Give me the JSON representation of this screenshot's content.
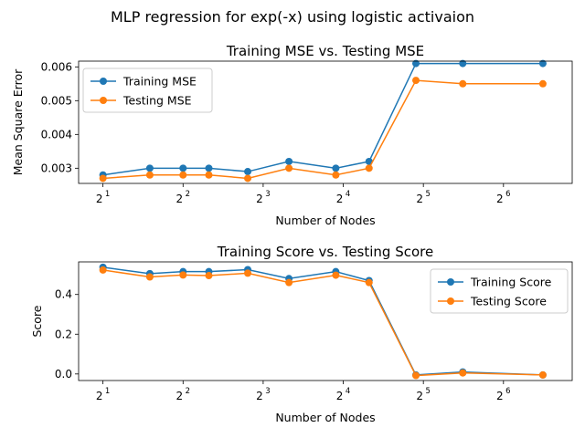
{
  "suptitle": "MLP regression for exp(-x) using logistic activaion",
  "chart_data": [
    {
      "type": "line",
      "title": "Training MSE vs. Testing MSE",
      "xlabel": "Number of Nodes",
      "ylabel": "Mean Square Error",
      "x_scale": "log2",
      "x": [
        2,
        3,
        4,
        5,
        7,
        10,
        15,
        20,
        30,
        45,
        90
      ],
      "xlim": [
        1.62,
        116
      ],
      "ylim": [
        0.00255,
        0.00617
      ],
      "yticks": [
        "0.003",
        "0.004",
        "0.005",
        "0.006"
      ],
      "xticks": [
        "2",
        "2",
        "2",
        "2",
        "2",
        "2"
      ],
      "xtick_exponents": [
        "1",
        "2",
        "3",
        "4",
        "5",
        "6"
      ],
      "legend_position": "upper left",
      "series": [
        {
          "name": "Training MSE",
          "color": "#1f77b4",
          "values": [
            0.0028,
            0.003,
            0.003,
            0.003,
            0.0029,
            0.0032,
            0.003,
            0.0032,
            0.0061,
            0.0061,
            0.0061
          ]
        },
        {
          "name": "Testing MSE",
          "color": "#ff7f0e",
          "values": [
            0.0027,
            0.0028,
            0.0028,
            0.0028,
            0.0027,
            0.003,
            0.0028,
            0.003,
            0.0056,
            0.0055,
            0.0055
          ]
        }
      ]
    },
    {
      "type": "line",
      "title": "Training Score vs. Testing Score",
      "xlabel": "Number of Nodes",
      "ylabel": "Score",
      "x_scale": "log2",
      "x": [
        2,
        3,
        4,
        5,
        7,
        10,
        15,
        20,
        30,
        45,
        90
      ],
      "xlim": [
        1.62,
        116
      ],
      "ylim": [
        -0.033,
        0.564
      ],
      "yticks": [
        "0.0",
        "0.2",
        "0.4"
      ],
      "xticks": [
        "2",
        "2",
        "2",
        "2",
        "2",
        "2"
      ],
      "xtick_exponents": [
        "1",
        "2",
        "3",
        "4",
        "5",
        "6"
      ],
      "legend_position": "upper right",
      "series": [
        {
          "name": "Training Score",
          "color": "#1f77b4",
          "values": [
            0.537,
            0.505,
            0.515,
            0.515,
            0.525,
            0.48,
            0.515,
            0.47,
            -0.005,
            0.01,
            -0.005
          ]
        },
        {
          "name": "Testing Score",
          "color": "#ff7f0e",
          "values": [
            0.523,
            0.488,
            0.498,
            0.495,
            0.507,
            0.46,
            0.497,
            0.46,
            -0.008,
            0.005,
            -0.005
          ]
        }
      ]
    }
  ]
}
